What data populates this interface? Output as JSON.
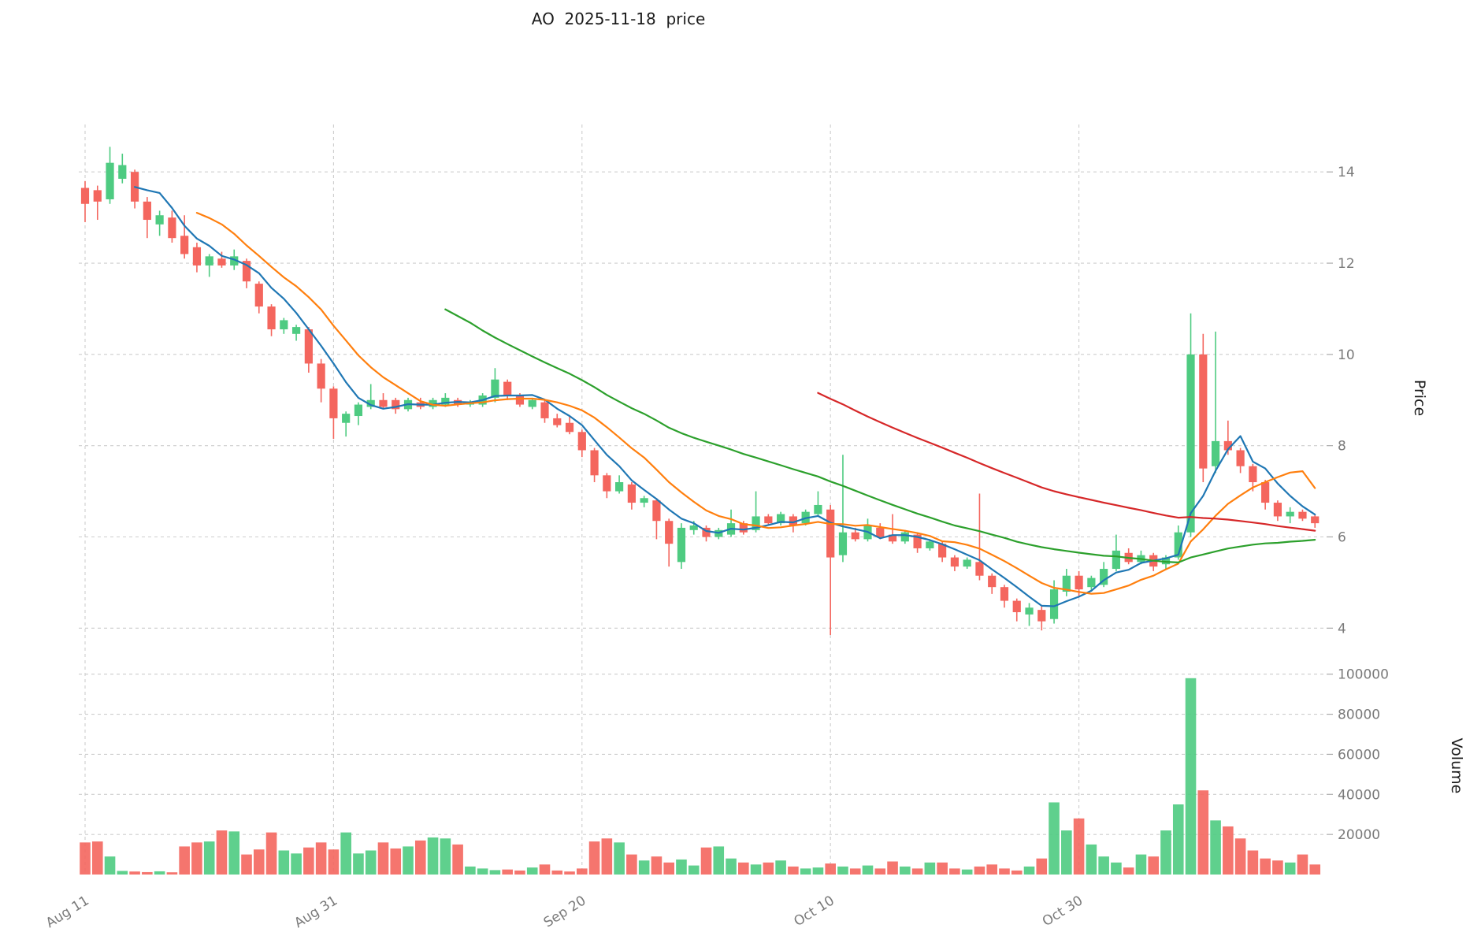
{
  "title": "AO  2025-11-18  price",
  "axes": {
    "price_label": "Price",
    "volume_label": "Volume"
  },
  "colors": {
    "up": "#4ecb81",
    "down": "#f4665e",
    "ma5": "#1f77b4",
    "ma10": "#ff7f0e",
    "ma30": "#2ca02c",
    "ma60": "#d62728",
    "grid": "#cdcdcd",
    "tick_text": "#7a7a7a",
    "tick_mark": "#aaaaaa"
  },
  "chart_data": {
    "type": "candlestick",
    "title": "AO  2025-11-18  price",
    "grid": true,
    "legend": "none",
    "x_tick_labels": [
      {
        "index": 0,
        "label": "Aug 11"
      },
      {
        "index": 20,
        "label": "Aug 31"
      },
      {
        "index": 40,
        "label": "Sep 20"
      },
      {
        "index": 60,
        "label": "Oct 10"
      },
      {
        "index": 80,
        "label": "Oct 30"
      }
    ],
    "price_ticks": [
      4,
      6,
      8,
      10,
      12,
      14
    ],
    "volume_ticks": [
      20000,
      40000,
      60000,
      80000,
      100000
    ],
    "price_range": [
      3.47,
      15.04
    ],
    "volume_range": [
      0,
      105000
    ],
    "moving_averages": [
      {
        "name": "MA5",
        "period": 5,
        "color_key": "ma5"
      },
      {
        "name": "MA10",
        "period": 10,
        "color_key": "ma10"
      },
      {
        "name": "MA30",
        "period": 30,
        "color_key": "ma30"
      },
      {
        "name": "MA60",
        "period": 60,
        "color_key": "ma60"
      }
    ],
    "ohlc": [
      [
        13.65,
        13.8,
        12.9,
        13.3
      ],
      [
        13.6,
        13.7,
        12.95,
        13.35
      ],
      [
        13.4,
        14.55,
        13.3,
        14.2
      ],
      [
        13.85,
        14.4,
        13.75,
        14.15
      ],
      [
        14.0,
        14.05,
        13.2,
        13.35
      ],
      [
        13.35,
        13.45,
        12.55,
        12.95
      ],
      [
        12.85,
        13.15,
        12.6,
        13.05
      ],
      [
        13.0,
        13.15,
        12.45,
        12.55
      ],
      [
        12.6,
        13.05,
        12.1,
        12.2
      ],
      [
        12.35,
        12.45,
        11.8,
        11.95
      ],
      [
        11.95,
        12.2,
        11.7,
        12.15
      ],
      [
        12.1,
        12.25,
        11.9,
        11.95
      ],
      [
        11.95,
        12.3,
        11.85,
        12.15
      ],
      [
        12.05,
        12.1,
        11.45,
        11.6
      ],
      [
        11.55,
        11.6,
        10.9,
        11.05
      ],
      [
        11.05,
        11.1,
        10.4,
        10.55
      ],
      [
        10.55,
        10.8,
        10.45,
        10.75
      ],
      [
        10.45,
        10.65,
        10.3,
        10.6
      ],
      [
        10.55,
        10.6,
        9.6,
        9.8
      ],
      [
        9.8,
        9.9,
        8.95,
        9.25
      ],
      [
        9.25,
        9.3,
        8.15,
        8.6
      ],
      [
        8.5,
        8.75,
        8.2,
        8.7
      ],
      [
        8.65,
        8.95,
        8.45,
        8.9
      ],
      [
        8.85,
        9.35,
        8.8,
        9.0
      ],
      [
        9.0,
        9.15,
        8.8,
        8.85
      ],
      [
        9.0,
        9.05,
        8.7,
        8.8
      ],
      [
        8.8,
        9.05,
        8.75,
        9.0
      ],
      [
        8.95,
        9.05,
        8.8,
        8.85
      ],
      [
        8.85,
        9.05,
        8.8,
        9.0
      ],
      [
        8.9,
        9.15,
        8.85,
        9.05
      ],
      [
        9.0,
        9.05,
        8.85,
        8.9
      ],
      [
        8.9,
        9.0,
        8.85,
        8.95
      ],
      [
        8.9,
        9.15,
        8.85,
        9.1
      ],
      [
        9.05,
        9.7,
        8.95,
        9.45
      ],
      [
        9.4,
        9.45,
        9.0,
        9.1
      ],
      [
        9.1,
        9.15,
        8.85,
        8.9
      ],
      [
        8.85,
        9.05,
        8.8,
        9.0
      ],
      [
        8.95,
        9.0,
        8.5,
        8.6
      ],
      [
        8.6,
        8.7,
        8.4,
        8.45
      ],
      [
        8.5,
        8.65,
        8.25,
        8.3
      ],
      [
        8.3,
        8.35,
        7.75,
        7.9
      ],
      [
        7.9,
        7.95,
        7.2,
        7.35
      ],
      [
        7.35,
        7.4,
        6.85,
        7.0
      ],
      [
        7.0,
        7.35,
        6.95,
        7.2
      ],
      [
        7.15,
        7.2,
        6.6,
        6.75
      ],
      [
        6.75,
        6.9,
        6.65,
        6.85
      ],
      [
        6.8,
        6.85,
        5.95,
        6.35
      ],
      [
        6.35,
        6.4,
        5.35,
        5.85
      ],
      [
        5.45,
        6.3,
        5.3,
        6.2
      ],
      [
        6.15,
        6.35,
        6.05,
        6.25
      ],
      [
        6.2,
        6.25,
        5.9,
        6.0
      ],
      [
        6.0,
        6.2,
        5.95,
        6.15
      ],
      [
        6.05,
        6.6,
        6.0,
        6.3
      ],
      [
        6.3,
        6.35,
        6.05,
        6.1
      ],
      [
        6.15,
        7.0,
        6.1,
        6.45
      ],
      [
        6.45,
        6.5,
        6.25,
        6.3
      ],
      [
        6.3,
        6.55,
        6.25,
        6.5
      ],
      [
        6.45,
        6.5,
        6.1,
        6.25
      ],
      [
        6.3,
        6.6,
        6.25,
        6.55
      ],
      [
        6.5,
        7.0,
        6.45,
        6.7
      ],
      [
        6.6,
        6.7,
        3.85,
        5.55
      ],
      [
        5.6,
        7.8,
        5.45,
        6.1
      ],
      [
        6.1,
        6.2,
        5.9,
        5.95
      ],
      [
        5.95,
        6.4,
        5.9,
        6.25
      ],
      [
        6.2,
        6.3,
        5.95,
        6.0
      ],
      [
        6.05,
        6.5,
        5.85,
        5.9
      ],
      [
        5.9,
        6.15,
        5.85,
        6.1
      ],
      [
        6.05,
        6.1,
        5.65,
        5.75
      ],
      [
        5.75,
        5.95,
        5.7,
        5.9
      ],
      [
        5.85,
        5.9,
        5.45,
        5.55
      ],
      [
        5.55,
        5.6,
        5.25,
        5.35
      ],
      [
        5.35,
        5.55,
        5.3,
        5.5
      ],
      [
        5.45,
        6.95,
        5.05,
        5.15
      ],
      [
        5.15,
        5.2,
        4.75,
        4.9
      ],
      [
        4.9,
        4.95,
        4.45,
        4.6
      ],
      [
        4.6,
        4.65,
        4.15,
        4.35
      ],
      [
        4.3,
        4.55,
        4.05,
        4.45
      ],
      [
        4.4,
        4.5,
        3.95,
        4.15
      ],
      [
        4.2,
        5.05,
        4.1,
        4.85
      ],
      [
        4.8,
        5.3,
        4.7,
        5.15
      ],
      [
        5.15,
        5.25,
        4.7,
        4.85
      ],
      [
        4.9,
        5.15,
        4.8,
        5.1
      ],
      [
        4.95,
        5.45,
        4.9,
        5.3
      ],
      [
        5.3,
        6.05,
        5.25,
        5.7
      ],
      [
        5.65,
        5.75,
        5.4,
        5.45
      ],
      [
        5.45,
        5.7,
        5.4,
        5.6
      ],
      [
        5.6,
        5.65,
        5.25,
        5.35
      ],
      [
        5.4,
        5.6,
        5.3,
        5.55
      ],
      [
        5.55,
        6.25,
        5.5,
        6.1
      ],
      [
        6.1,
        10.9,
        6.0,
        10.0
      ],
      [
        10.0,
        10.45,
        7.2,
        7.5
      ],
      [
        7.55,
        10.5,
        7.4,
        8.1
      ],
      [
        8.1,
        8.55,
        7.8,
        7.9
      ],
      [
        7.9,
        7.95,
        7.4,
        7.55
      ],
      [
        7.55,
        7.6,
        7.0,
        7.2
      ],
      [
        7.2,
        7.25,
        6.6,
        6.75
      ],
      [
        6.75,
        6.8,
        6.35,
        6.45
      ],
      [
        6.45,
        6.65,
        6.3,
        6.55
      ],
      [
        6.55,
        6.6,
        6.35,
        6.4
      ],
      [
        6.45,
        6.5,
        6.2,
        6.3
      ]
    ],
    "volume": [
      16000,
      16500,
      9000,
      1800,
      1500,
      1200,
      1600,
      1100,
      14000,
      16000,
      16500,
      22000,
      21500,
      10000,
      12500,
      21000,
      12000,
      10500,
      13500,
      16000,
      12500,
      21000,
      10500,
      12000,
      16000,
      13000,
      14000,
      17000,
      18500,
      18000,
      15000,
      4000,
      3000,
      2200,
      2500,
      2000,
      3500,
      5000,
      2000,
      1500,
      3000,
      16500,
      18000,
      16000,
      10000,
      7000,
      9000,
      6000,
      7500,
      4500,
      13500,
      14000,
      8000,
      6000,
      5000,
      6000,
      7000,
      4000,
      3000,
      3500,
      5500,
      4000,
      3000,
      4500,
      3000,
      6500,
      4000,
      3000,
      6000,
      6000,
      3000,
      2500,
      4000,
      5000,
      3000,
      2000,
      4000,
      8000,
      36000,
      22000,
      28000,
      15000,
      9000,
      6000,
      3500,
      10000,
      9000,
      22000,
      35000,
      98000,
      42000,
      27000,
      24000,
      18000,
      12000,
      8000,
      7000,
      6000,
      10000,
      5000
    ]
  }
}
